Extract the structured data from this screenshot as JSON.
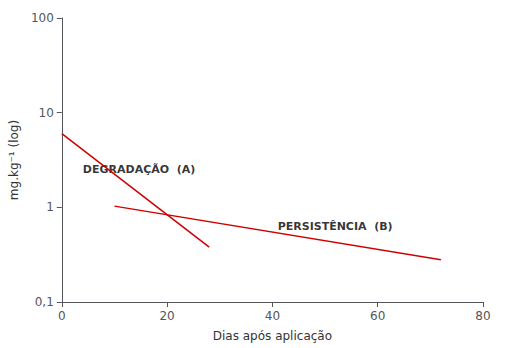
{
  "chart_data": {
    "type": "line",
    "xlabel": "Dias após aplicação",
    "ylabel": "mg.kg⁻¹ (log)",
    "xlim": [
      0,
      80
    ],
    "ylim": [
      0.1,
      100
    ],
    "xticks": [
      0,
      20,
      40,
      60,
      80
    ],
    "yticks": [
      {
        "value": 0.1,
        "label": "0,1"
      },
      1,
      10,
      100
    ],
    "log": "y",
    "grid": false,
    "series": [
      {
        "x": [
          0,
          28
        ],
        "values": [
          6.0,
          0.38
        ],
        "color": "#cc0000"
      },
      {
        "x": [
          10,
          72
        ],
        "values": [
          1.03,
          0.28
        ],
        "color": "#cc0000"
      }
    ],
    "annotations": [
      {
        "text": "DEGRADAÇÃO  (A)",
        "x": 4,
        "y": 2.5
      },
      {
        "text": "PERSISTÊNCIA  (B)",
        "x": 41,
        "y": 0.62
      }
    ]
  }
}
